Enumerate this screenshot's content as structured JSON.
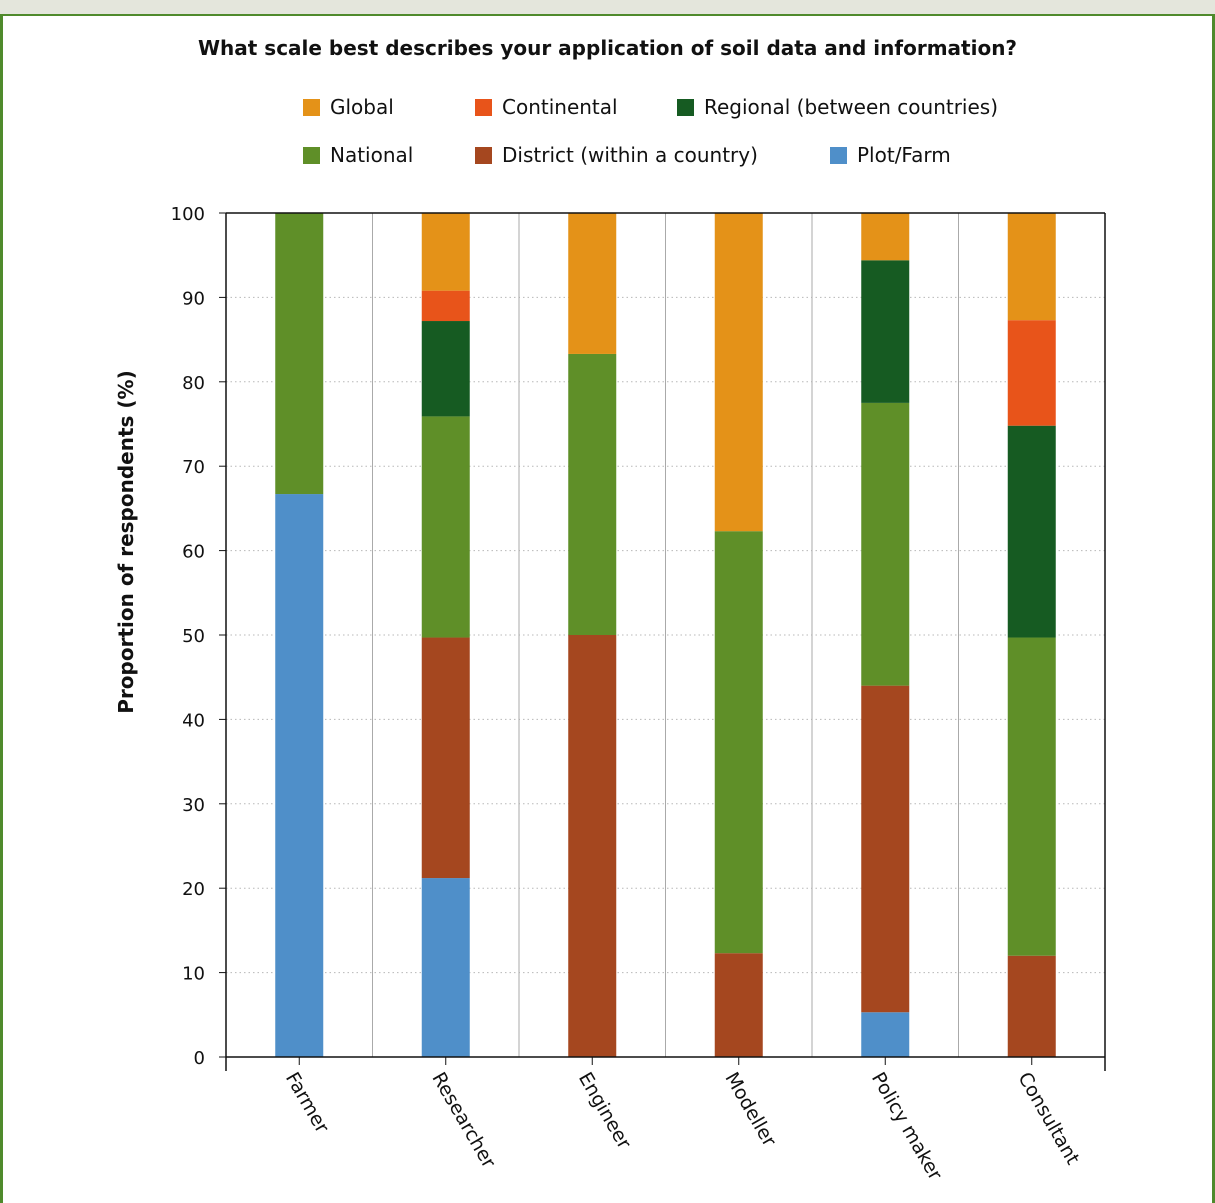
{
  "chart_data": {
    "type": "bar",
    "stacked": true,
    "title": "What scale best describes your application of soil data and information?",
    "ylabel": "Proportion of respondents (%)",
    "xlabel": "",
    "ylim": [
      0,
      100
    ],
    "yticks": [
      "0",
      "10",
      "20",
      "30",
      "40",
      "50",
      "60",
      "70",
      "80",
      "90",
      "100"
    ],
    "grid": true,
    "legend_position": "top",
    "categories": [
      "Farmer",
      "Researcher",
      "Engineer",
      "Modeller",
      "Policy maker",
      "Consultant"
    ],
    "series": [
      {
        "name": "Plot/Farm",
        "color": "#4f8fc9",
        "values": [
          66.7,
          21.2,
          0,
          0,
          5.3,
          0
        ]
      },
      {
        "name": "District (within a country)",
        "color": "#a5471f",
        "values": [
          0,
          28.5,
          50.0,
          12.3,
          38.7,
          12.0
        ]
      },
      {
        "name": "National",
        "color": "#5f8f28",
        "values": [
          33.3,
          26.2,
          33.3,
          50.0,
          33.5,
          37.7
        ]
      },
      {
        "name": "Regional (between countries)",
        "color": "#165b22",
        "values": [
          0,
          11.3,
          0,
          0,
          16.9,
          25.1
        ]
      },
      {
        "name": "Continental",
        "color": "#e8541a",
        "values": [
          0,
          3.6,
          0,
          0,
          0,
          12.5
        ]
      },
      {
        "name": "Global",
        "color": "#e49218",
        "values": [
          0,
          9.2,
          16.7,
          37.7,
          5.6,
          12.7
        ]
      }
    ],
    "legend_rows": [
      [
        "Global",
        "Continental",
        "Regional (between countries)"
      ],
      [
        "National",
        "District (within a country)",
        "Plot/Farm"
      ]
    ]
  }
}
